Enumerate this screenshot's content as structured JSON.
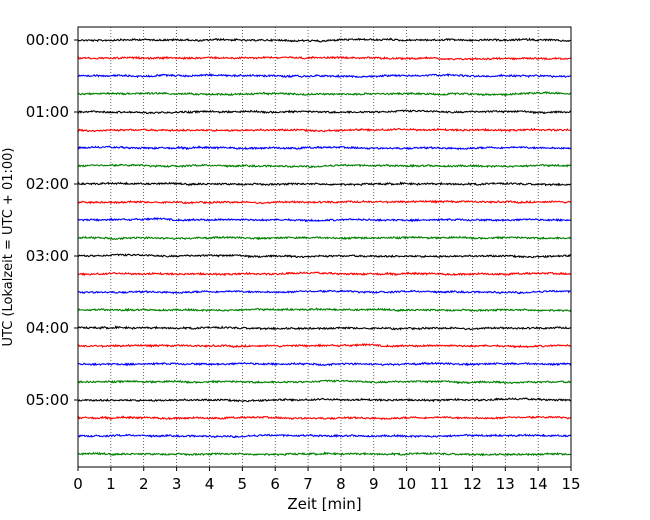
{
  "chart_data": {
    "type": "line",
    "xlabel": "Zeit  [min]",
    "ylabel": "UTC (Lokalzeit = UTC + 01:00)",
    "xlim": [
      0,
      15
    ],
    "x_ticks": [
      "0",
      "1",
      "2",
      "3",
      "4",
      "5",
      "6",
      "7",
      "8",
      "9",
      "10",
      "11",
      "12",
      "13",
      "14",
      "15"
    ],
    "y_tick_labels": [
      "00:00",
      "01:00",
      "02:00",
      "03:00",
      "04:00",
      "05:00"
    ],
    "grid": "vertical dotted lines at each minute",
    "traces_per_hour": 4,
    "trace_minutes": 15,
    "trace_count": 24,
    "series_colors": [
      "#000000",
      "#ff0000",
      "#0000ff",
      "#008000"
    ]
  }
}
